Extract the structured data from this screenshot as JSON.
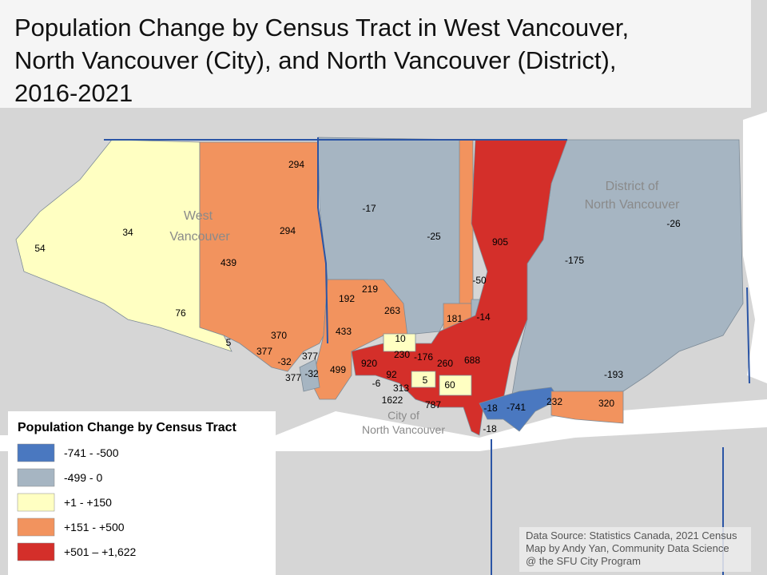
{
  "title_lines": [
    "Population Change by Census Tract in West Vancouver,",
    "North Vancouver (City), and North Vancouver (District),",
    "2016-2021"
  ],
  "place_labels": {
    "west": [
      "West",
      "Vancouver"
    ],
    "district": [
      "District of",
      "North Vancouver"
    ],
    "city": [
      "City of",
      "North Vancouver"
    ]
  },
  "tract_labels": [
    54,
    34,
    76,
    5,
    439,
    294,
    294,
    370,
    377,
    -32,
    377,
    377,
    -32,
    499,
    192,
    219,
    263,
    433,
    10,
    230,
    -176,
    920,
    92,
    -6,
    313,
    5,
    260,
    688,
    60,
    1622,
    787,
    -17,
    -25,
    905,
    -50,
    181,
    -14,
    -175,
    -26,
    -193,
    -18,
    -741,
    -18,
    232,
    320
  ],
  "legend": {
    "title": "Population Change by Census Tract",
    "items": [
      {
        "label": "-741 - -500",
        "color": "#4a78c0"
      },
      {
        "label": "-499 - 0",
        "color": "#a6b5c2"
      },
      {
        "label": "+1 - +150",
        "color": "#ffffc2"
      },
      {
        "label": "+151 - +500",
        "color": "#f2935e"
      },
      {
        "label": "+501 – +1,622",
        "color": "#d42f2a"
      }
    ]
  },
  "source_lines": [
    "Data Source: Statistics Canada, 2021 Census",
    "Map by Andy Yan, Community Data Science",
    "@ the SFU City Program"
  ]
}
